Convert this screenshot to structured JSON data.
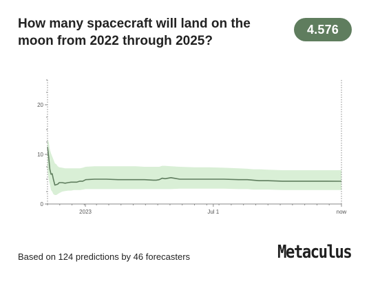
{
  "question": {
    "title": "How many spacecraft will land on the moon from 2022 through 2025?"
  },
  "forecast": {
    "value": "4.576"
  },
  "footer": {
    "summary": "Based on 124 predictions by 46 forecasters",
    "brand": "Metaculus"
  },
  "colors": {
    "line": "#5f7d5e",
    "band": "#d9efd6",
    "badge": "#5f7d5e",
    "axis": "#888888"
  },
  "chart_data": {
    "type": "line",
    "title": "",
    "xlabel": "",
    "ylabel": "",
    "ylim": [
      0,
      25
    ],
    "yticks": [
      0,
      10,
      20
    ],
    "ytick_labels": [
      "0",
      "10",
      "20"
    ],
    "xlim": [
      0,
      1
    ],
    "xticks": [
      0.129,
      0.564,
      1.0
    ],
    "xtick_labels": [
      "2023",
      "Jul 1",
      "now"
    ],
    "grid": false,
    "legend": "none",
    "series": [
      {
        "x": [
          0.0,
          0.004,
          0.008,
          0.012,
          0.016,
          0.02,
          0.025,
          0.03,
          0.035,
          0.04,
          0.05,
          0.06,
          0.07,
          0.08,
          0.09,
          0.1,
          0.11,
          0.12,
          0.13,
          0.16,
          0.2,
          0.24,
          0.26,
          0.3,
          0.33,
          0.36,
          0.37,
          0.38,
          0.39,
          0.4,
          0.42,
          0.45,
          0.5,
          0.55,
          0.6,
          0.65,
          0.68,
          0.7,
          0.72,
          0.75,
          0.8,
          0.85,
          0.9,
          0.95,
          1.0
        ],
        "median": [
          11.5,
          9.5,
          7.0,
          6.0,
          6.1,
          5.0,
          3.8,
          3.9,
          4.0,
          4.3,
          4.3,
          4.2,
          4.3,
          4.4,
          4.4,
          4.4,
          4.6,
          4.6,
          4.9,
          5.0,
          5.0,
          4.9,
          4.9,
          4.9,
          4.9,
          4.8,
          4.8,
          4.9,
          5.2,
          5.1,
          5.3,
          5.0,
          5.0,
          5.0,
          5.0,
          4.9,
          4.9,
          4.8,
          4.7,
          4.7,
          4.6,
          4.6,
          4.6,
          4.6,
          4.58
        ],
        "lower": [
          7.0,
          5.0,
          4.0,
          2.8,
          2.5,
          2.0,
          1.8,
          1.8,
          2.0,
          2.2,
          2.5,
          2.6,
          2.7,
          2.7,
          2.8,
          2.8,
          2.8,
          2.9,
          3.0,
          3.0,
          3.0,
          3.0,
          3.0,
          3.0,
          3.0,
          3.0,
          3.0,
          3.0,
          3.0,
          3.0,
          3.0,
          3.1,
          3.1,
          3.1,
          3.1,
          3.0,
          3.0,
          2.9,
          2.9,
          2.9,
          2.8,
          2.8,
          2.8,
          2.8,
          2.8
        ],
        "upper": [
          13.0,
          12.5,
          11.0,
          10.2,
          9.6,
          9.0,
          8.2,
          8.0,
          7.6,
          7.4,
          7.3,
          7.2,
          7.2,
          7.2,
          7.2,
          7.2,
          7.2,
          7.3,
          7.5,
          7.6,
          7.6,
          7.6,
          7.6,
          7.6,
          7.5,
          7.5,
          7.5,
          7.5,
          7.7,
          7.7,
          7.6,
          7.5,
          7.4,
          7.4,
          7.3,
          7.2,
          7.1,
          7.0,
          7.0,
          6.9,
          6.8,
          6.8,
          6.8,
          6.8,
          6.8
        ]
      }
    ]
  }
}
